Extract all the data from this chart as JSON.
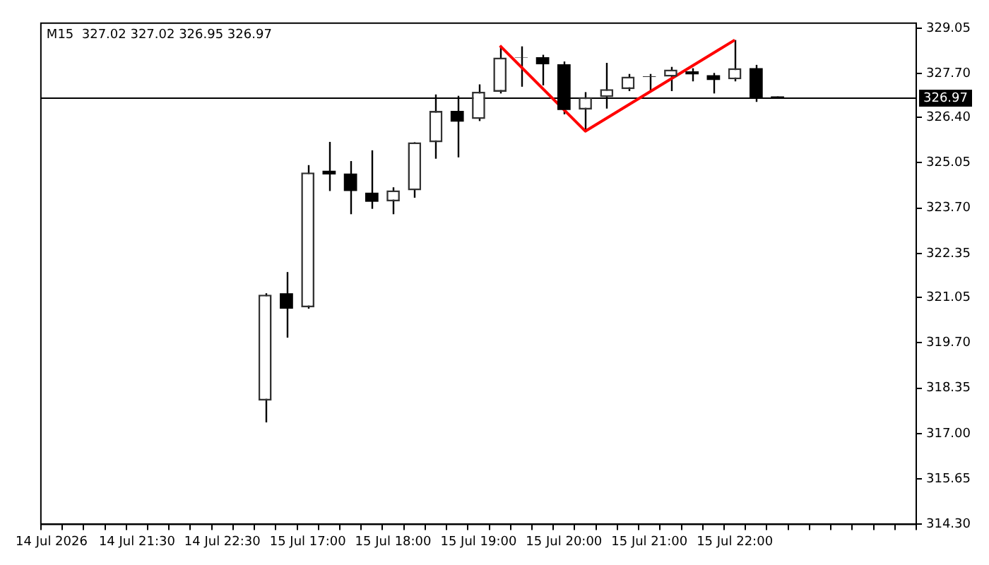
{
  "chart_data": {
    "type": "candlestick",
    "title": "M15  327.02 327.02 326.95 326.97",
    "categories": [
      "14 Jul 2026",
      null,
      null,
      null,
      "14 Jul 21:30",
      null,
      null,
      null,
      "14 Jul 22:30",
      null,
      null,
      null,
      "15 Jul 17:00",
      null,
      null,
      null,
      "15 Jul 18:00",
      null,
      null,
      null,
      "15 Jul 19:00",
      null,
      null,
      null,
      "15 Jul 20:00",
      null,
      null,
      null,
      "15 Jul 21:00",
      null,
      null,
      null,
      "15 Jul 22:00",
      null,
      null,
      null,
      null,
      null,
      null,
      null,
      null
    ],
    "ohlc": [
      null,
      null,
      null,
      null,
      null,
      null,
      null,
      null,
      null,
      null,
      [
        317.98,
        321.17,
        317.33,
        321.13
      ],
      [
        321.17,
        321.8,
        319.85,
        320.71
      ],
      [
        320.75,
        324.98,
        320.71,
        324.76
      ],
      [
        324.81,
        325.67,
        324.21,
        324.7
      ],
      [
        324.73,
        325.1,
        323.52,
        324.21
      ],
      [
        324.16,
        325.42,
        323.68,
        323.89
      ],
      [
        323.9,
        324.32,
        323.52,
        324.23
      ],
      [
        324.23,
        325.66,
        324.01,
        325.66
      ],
      [
        325.66,
        327.08,
        325.17,
        326.59
      ],
      [
        326.59,
        327.04,
        325.21,
        326.27
      ],
      [
        326.35,
        327.38,
        326.29,
        327.16
      ],
      [
        327.16,
        328.53,
        327.11,
        328.18
      ],
      [
        328.17,
        328.51,
        327.31,
        328.19
      ],
      [
        328.19,
        328.26,
        327.35,
        327.98
      ],
      [
        327.98,
        328.06,
        326.49,
        326.62
      ],
      [
        326.63,
        327.15,
        325.99,
        327.0
      ],
      [
        327.0,
        328.02,
        326.66,
        327.24
      ],
      [
        327.24,
        327.69,
        327.18,
        327.61
      ],
      [
        327.6,
        327.69,
        327.18,
        327.62
      ],
      [
        327.61,
        327.9,
        327.18,
        327.82
      ],
      [
        327.77,
        327.86,
        327.47,
        327.68
      ],
      [
        327.65,
        327.72,
        327.11,
        327.51
      ],
      [
        327.53,
        328.7,
        327.47,
        327.86
      ],
      [
        327.86,
        327.96,
        326.86,
        326.97
      ],
      [
        327.02,
        327.02,
        326.95,
        326.97
      ],
      null,
      null,
      null,
      null,
      null,
      null
    ],
    "series": [
      {
        "type": "line",
        "color": "#ff0000",
        "values": [
          null,
          null,
          null,
          null,
          null,
          null,
          null,
          null,
          null,
          null,
          null,
          null,
          null,
          null,
          null,
          null,
          null,
          null,
          null,
          null,
          null,
          328.53,
          null,
          null,
          null,
          325.99,
          null,
          null,
          null,
          null,
          null,
          null,
          328.7,
          null,
          null,
          null,
          null,
          null,
          null,
          null,
          null
        ]
      }
    ],
    "marker": "none",
    "ylim": [
      314.3,
      329.2
    ],
    "yticks": [
      {
        "value": 329.05,
        "label": "329.05"
      },
      {
        "value": 327.7,
        "label": "327.70"
      },
      {
        "value": 326.4,
        "label": "326.40"
      },
      {
        "value": 325.05,
        "label": "325.05"
      },
      {
        "value": 323.7,
        "label": "323.70"
      },
      {
        "value": 322.35,
        "label": "322.35"
      },
      {
        "value": 321.05,
        "label": "321.05"
      },
      {
        "value": 319.7,
        "label": "319.70"
      },
      {
        "value": 318.35,
        "label": "318.35"
      },
      {
        "value": 317,
        "label": "317.00"
      },
      {
        "value": 315.65,
        "label": "315.65"
      },
      {
        "value": 314.3,
        "label": "314.30"
      }
    ],
    "ref_lines": [
      {
        "axis": "y",
        "value": 326.97,
        "label": "326.97",
        "color": "#000000"
      }
    ],
    "grid": false,
    "legend": false
  }
}
